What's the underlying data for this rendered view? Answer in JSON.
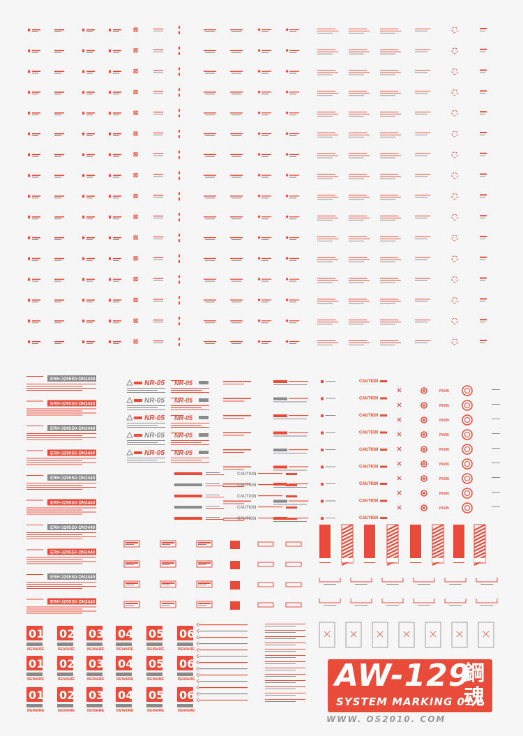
{
  "colors": {
    "red": "#e94b3a",
    "gray": "#8a8a8a",
    "paper": "#f6f6f6"
  },
  "decal_text": {
    "caution": "CAUTION",
    "step_here": "STEP HERE",
    "nr05": "NR-05",
    "serial": "ERH-3295S0-DN3440",
    "do_not_step": "DO NOT STEP",
    "danger": "DANGER",
    "warning": "WARNING",
    "beware": "BEWARE",
    "pk": "PK/05"
  },
  "numbers": [
    "01",
    "02",
    "03",
    "04",
    "05",
    "06"
  ],
  "logo": {
    "code": "AW-129",
    "subtitle": "SYSTEM MARKING 01",
    "kanji_top": "鋼",
    "kanji_bottom": "魂",
    "website": "WWW. OS2010. COM"
  }
}
